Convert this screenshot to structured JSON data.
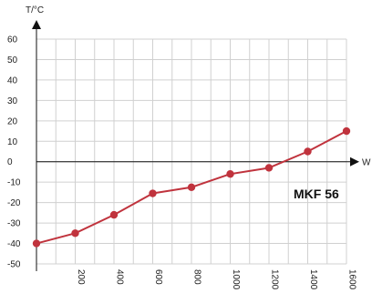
{
  "chart_data": {
    "type": "line",
    "title": "",
    "xlabel": "W",
    "ylabel": "T/°C",
    "x": [
      0,
      200,
      400,
      600,
      800,
      1000,
      1200,
      1400,
      1600
    ],
    "xlim": [
      0,
      1600
    ],
    "ylim": [
      -50,
      60
    ],
    "x_ticks": [
      200,
      400,
      600,
      800,
      1000,
      1200,
      1400,
      1600
    ],
    "x_tick_labels": [
      "200",
      "400",
      "600",
      "800",
      "1000",
      "1200",
      "1400",
      "1600"
    ],
    "y_ticks": [
      60,
      50,
      40,
      30,
      20,
      10,
      0,
      -10,
      -20,
      -30,
      -40,
      -50
    ],
    "y_tick_labels": [
      "60",
      "50",
      "40",
      "30",
      "20",
      "10",
      "0",
      "-10",
      "-20",
      "-30",
      "-40",
      "-50"
    ],
    "grid": true,
    "series": [
      {
        "values": [
          -40,
          -35,
          -26,
          -15.5,
          -12.5,
          -6,
          -3,
          5,
          15
        ],
        "color": "#c0333d"
      }
    ],
    "annotations": [
      "MKF 56"
    ],
    "colors": {
      "line": "#c0333d",
      "grid": "#d0d0d0",
      "axis": "#111111"
    }
  }
}
